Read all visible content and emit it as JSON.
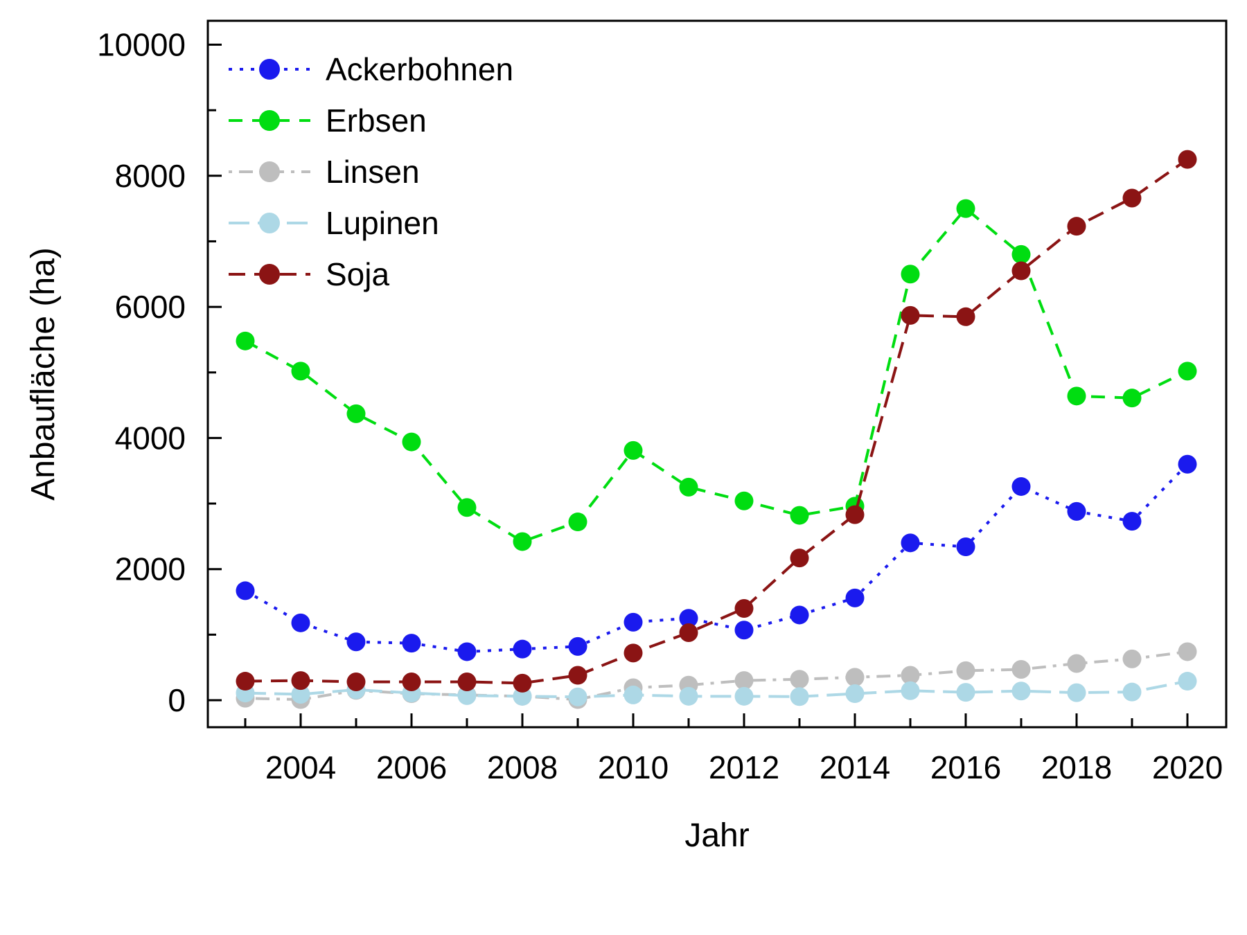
{
  "chart_data": {
    "type": "line",
    "title": "",
    "xlabel": "Jahr",
    "ylabel": "Anbaufläche (ha)",
    "x": [
      2003,
      2004,
      2005,
      2006,
      2007,
      2008,
      2009,
      2010,
      2011,
      2012,
      2013,
      2014,
      2015,
      2016,
      2017,
      2018,
      2019,
      2020
    ],
    "x_labeled_ticks": [
      2004,
      2006,
      2008,
      2010,
      2012,
      2014,
      2016,
      2018,
      2020
    ],
    "y_major_ticks": [
      0,
      2000,
      4000,
      6000,
      8000,
      10000
    ],
    "y_minor_ticks": [
      1000,
      3000,
      5000,
      7000,
      9000
    ],
    "ylim": [
      0,
      10000
    ],
    "grid": false,
    "legend_position": "top-left",
    "axis_color": "#000000",
    "background_color": "#ffffff",
    "series": [
      {
        "name": "Ackerbohnen",
        "color": "#1a1aee",
        "linestyle": "dotted",
        "values": [
          1670,
          1180,
          890,
          870,
          740,
          780,
          820,
          1190,
          1250,
          1070,
          1300,
          1560,
          2400,
          2340,
          3260,
          2880,
          2730,
          3600
        ]
      },
      {
        "name": "Erbsen",
        "color": "#00dd11",
        "linestyle": "dashed",
        "values": [
          5480,
          5020,
          4370,
          3940,
          2940,
          2420,
          2720,
          3810,
          3250,
          3040,
          2820,
          2960,
          6500,
          7500,
          6800,
          4640,
          4610,
          5020
        ]
      },
      {
        "name": "Linsen",
        "color": "#bebebe",
        "linestyle": "dotdash",
        "values": [
          30,
          10,
          150,
          100,
          80,
          60,
          10,
          190,
          230,
          300,
          320,
          350,
          380,
          450,
          470,
          560,
          630,
          740
        ]
      },
      {
        "name": "Lupinen",
        "color": "#add8e6",
        "linestyle": "longdash",
        "values": [
          110,
          90,
          160,
          110,
          70,
          60,
          50,
          80,
          60,
          60,
          55,
          100,
          145,
          120,
          140,
          115,
          125,
          290
        ]
      },
      {
        "name": "Soja",
        "color": "#8b1414",
        "linestyle": "twodash",
        "values": [
          290,
          300,
          280,
          280,
          280,
          260,
          380,
          720,
          1030,
          1400,
          2170,
          2830,
          5870,
          5850,
          6550,
          7230,
          7660,
          8250
        ]
      }
    ]
  }
}
